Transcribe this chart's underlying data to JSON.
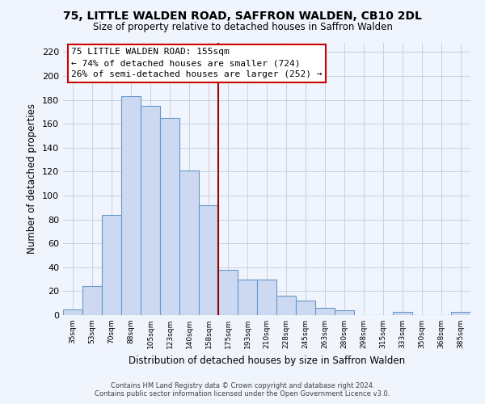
{
  "title": "75, LITTLE WALDEN ROAD, SAFFRON WALDEN, CB10 2DL",
  "subtitle": "Size of property relative to detached houses in Saffron Walden",
  "xlabel": "Distribution of detached houses by size in Saffron Walden",
  "ylabel": "Number of detached properties",
  "bar_labels": [
    "35sqm",
    "53sqm",
    "70sqm",
    "88sqm",
    "105sqm",
    "123sqm",
    "140sqm",
    "158sqm",
    "175sqm",
    "193sqm",
    "210sqm",
    "228sqm",
    "245sqm",
    "263sqm",
    "280sqm",
    "298sqm",
    "315sqm",
    "333sqm",
    "350sqm",
    "368sqm",
    "385sqm"
  ],
  "bar_values": [
    5,
    24,
    84,
    183,
    175,
    165,
    121,
    92,
    38,
    30,
    30,
    16,
    12,
    6,
    4,
    0,
    0,
    3,
    0,
    0,
    3
  ],
  "bar_color": "#ccd9f0",
  "bar_edge_color": "#6699cc",
  "vline_index": 7.5,
  "vline_color": "#990000",
  "annotation_title": "75 LITTLE WALDEN ROAD: 155sqm",
  "annotation_line1": "← 74% of detached houses are smaller (724)",
  "annotation_line2": "26% of semi-detached houses are larger (252) →",
  "annotation_box_edge": "#cc0000",
  "annotation_box_face": "#ffffff",
  "footer1": "Contains HM Land Registry data © Crown copyright and database right 2024.",
  "footer2": "Contains public sector information licensed under the Open Government Licence v3.0.",
  "ylim": [
    0,
    228
  ],
  "yticks": [
    0,
    20,
    40,
    60,
    80,
    100,
    120,
    140,
    160,
    180,
    200,
    220
  ],
  "background_color": "#f0f4fc",
  "grid_color": "#c0cce0",
  "figwidth": 6.0,
  "figheight": 5.0,
  "dpi": 100
}
